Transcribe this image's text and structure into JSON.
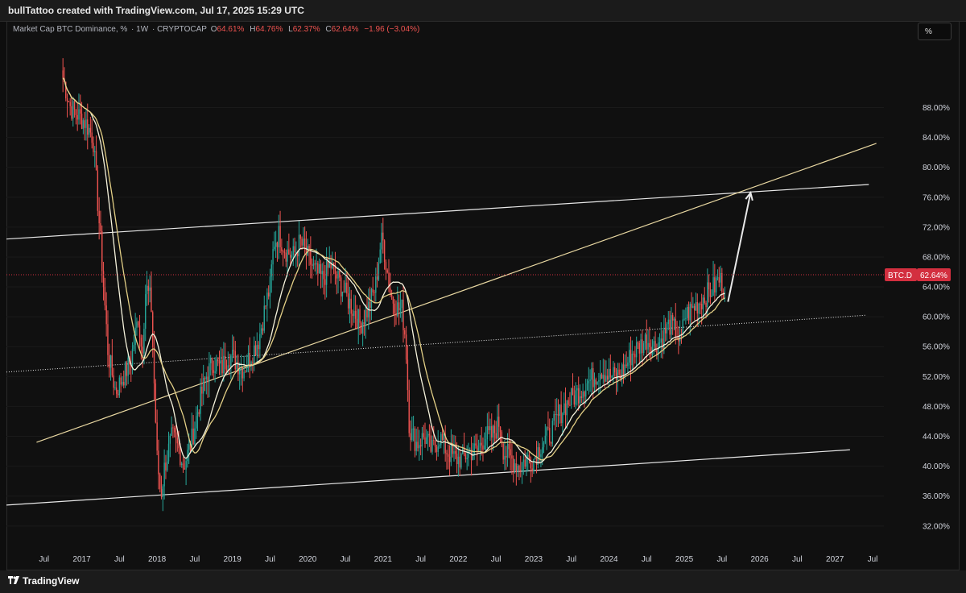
{
  "header": {
    "attribution": "bullTattoo created with TradingView.com, Jul 17, 2025 15:29 UTC"
  },
  "legend": {
    "symbol": "Market Cap BTC Dominance, %",
    "interval": "1W",
    "exchange": "CRYPTOCAP",
    "open_label": "O",
    "open": "64.61%",
    "high_label": "H",
    "high": "64.76%",
    "low_label": "L",
    "low": "62.37%",
    "close_label": "C",
    "close": "62.64%",
    "change": "−1.96 (−3.04%)"
  },
  "scale_button": "%",
  "price_tag": {
    "symbol": "BTC.D",
    "value": "62.64%"
  },
  "footer": {
    "brand": "TradingView"
  },
  "colors": {
    "up": "#26a69a",
    "down": "#ef5350",
    "ma_white": "#f5f2dc",
    "ma_yellow": "#e3cf86",
    "line_yellow": "#e8d7a1",
    "line_white": "#e8e8e8",
    "price_tag": "#d32f3f"
  },
  "chart_data": {
    "type": "candlestick",
    "title": "Market Cap BTC Dominance, %",
    "y_unit": "%",
    "ylim": [
      29.5,
      97.0
    ],
    "y_ticks": [
      "88.00%",
      "84.00%",
      "80.00%",
      "76.00%",
      "72.00%",
      "68.00%",
      "64.00%",
      "60.00%",
      "56.00%",
      "52.00%",
      "48.00%",
      "44.00%",
      "40.00%",
      "36.00%",
      "32.00%"
    ],
    "x_ticks": [
      "Jul",
      "2017",
      "Jul",
      "2018",
      "Jul",
      "2019",
      "Jul",
      "2020",
      "Jul",
      "2021",
      "Jul",
      "2022",
      "Jul",
      "2023",
      "Jul",
      "2024",
      "Jul",
      "2025",
      "Jul",
      "2026",
      "Jul",
      "2027",
      "Jul"
    ],
    "xlim": [
      2016.0,
      2027.65
    ],
    "last_price": 62.64,
    "series_close": [
      [
        2016.75,
        92
      ],
      [
        2016.85,
        88
      ],
      [
        2016.95,
        87
      ],
      [
        2017.05,
        86
      ],
      [
        2017.15,
        84
      ],
      [
        2017.25,
        70
      ],
      [
        2017.35,
        55
      ],
      [
        2017.45,
        50
      ],
      [
        2017.55,
        52
      ],
      [
        2017.65,
        54
      ],
      [
        2017.75,
        60
      ],
      [
        2017.8,
        55
      ],
      [
        2017.85,
        64
      ],
      [
        2017.92,
        62
      ],
      [
        2018.0,
        41
      ],
      [
        2018.05,
        36
      ],
      [
        2018.1,
        40
      ],
      [
        2018.2,
        44
      ],
      [
        2018.3,
        42
      ],
      [
        2018.35,
        40
      ],
      [
        2018.45,
        43
      ],
      [
        2018.55,
        48
      ],
      [
        2018.65,
        52
      ],
      [
        2018.75,
        54
      ],
      [
        2018.85,
        53
      ],
      [
        2018.95,
        55
      ],
      [
        2019.05,
        54
      ],
      [
        2019.15,
        53
      ],
      [
        2019.25,
        55
      ],
      [
        2019.35,
        57
      ],
      [
        2019.45,
        62
      ],
      [
        2019.5,
        64
      ],
      [
        2019.55,
        70
      ],
      [
        2019.62,
        71
      ],
      [
        2019.7,
        69
      ],
      [
        2019.8,
        68
      ],
      [
        2019.9,
        70
      ],
      [
        2020.0,
        68
      ],
      [
        2020.1,
        66
      ],
      [
        2020.2,
        65
      ],
      [
        2020.3,
        67
      ],
      [
        2020.4,
        65
      ],
      [
        2020.5,
        63
      ],
      [
        2020.6,
        61
      ],
      [
        2020.7,
        59
      ],
      [
        2020.8,
        61
      ],
      [
        2020.9,
        64
      ],
      [
        2020.97,
        70
      ],
      [
        2021.0,
        70
      ],
      [
        2021.1,
        63
      ],
      [
        2021.2,
        61
      ],
      [
        2021.25,
        61
      ],
      [
        2021.3,
        57
      ],
      [
        2021.35,
        45
      ],
      [
        2021.45,
        43
      ],
      [
        2021.55,
        44
      ],
      [
        2021.65,
        42
      ],
      [
        2021.75,
        44
      ],
      [
        2021.85,
        42
      ],
      [
        2021.95,
        41
      ],
      [
        2022.05,
        41
      ],
      [
        2022.15,
        42
      ],
      [
        2022.25,
        42
      ],
      [
        2022.35,
        44
      ],
      [
        2022.45,
        44
      ],
      [
        2022.55,
        46
      ],
      [
        2022.6,
        42
      ],
      [
        2022.7,
        41
      ],
      [
        2022.8,
        40
      ],
      [
        2022.9,
        41
      ],
      [
        2023.0,
        41
      ],
      [
        2023.1,
        43
      ],
      [
        2023.2,
        44
      ],
      [
        2023.3,
        46
      ],
      [
        2023.4,
        48
      ],
      [
        2023.5,
        49
      ],
      [
        2023.6,
        50
      ],
      [
        2023.7,
        51
      ],
      [
        2023.8,
        52
      ],
      [
        2023.9,
        53
      ],
      [
        2024.0,
        52
      ],
      [
        2024.1,
        52
      ],
      [
        2024.2,
        53
      ],
      [
        2024.3,
        55
      ],
      [
        2024.4,
        56
      ],
      [
        2024.5,
        57
      ],
      [
        2024.6,
        56
      ],
      [
        2024.7,
        57
      ],
      [
        2024.8,
        59
      ],
      [
        2024.9,
        58
      ],
      [
        2024.95,
        56
      ],
      [
        2025.0,
        60
      ],
      [
        2025.1,
        61
      ],
      [
        2025.2,
        62
      ],
      [
        2025.3,
        63
      ],
      [
        2025.4,
        64
      ],
      [
        2025.45,
        65
      ],
      [
        2025.5,
        64.6
      ],
      [
        2025.54,
        62.64
      ]
    ],
    "overlays": [
      {
        "kind": "moving-average",
        "color": "white"
      },
      {
        "kind": "moving-average",
        "color": "yellow"
      },
      {
        "kind": "trendline",
        "color": "white",
        "from": [
          2016.0,
          70.4
        ],
        "to": [
          2027.45,
          77.7
        ]
      },
      {
        "kind": "trendline",
        "color": "yellow",
        "from": [
          2016.4,
          43.2
        ],
        "to": [
          2027.55,
          83.2
        ]
      },
      {
        "kind": "trendline",
        "color": "white",
        "from": [
          2016.0,
          34.8
        ],
        "to": [
          2027.2,
          42.2
        ]
      },
      {
        "kind": "trendline-dotted",
        "color": "white",
        "from": [
          2016.0,
          52.6
        ],
        "to": [
          2027.4,
          60.2
        ]
      },
      {
        "kind": "arrow",
        "color": "white",
        "from": [
          2025.58,
          62.0
        ],
        "to": [
          2025.88,
          76.6
        ]
      }
    ]
  }
}
